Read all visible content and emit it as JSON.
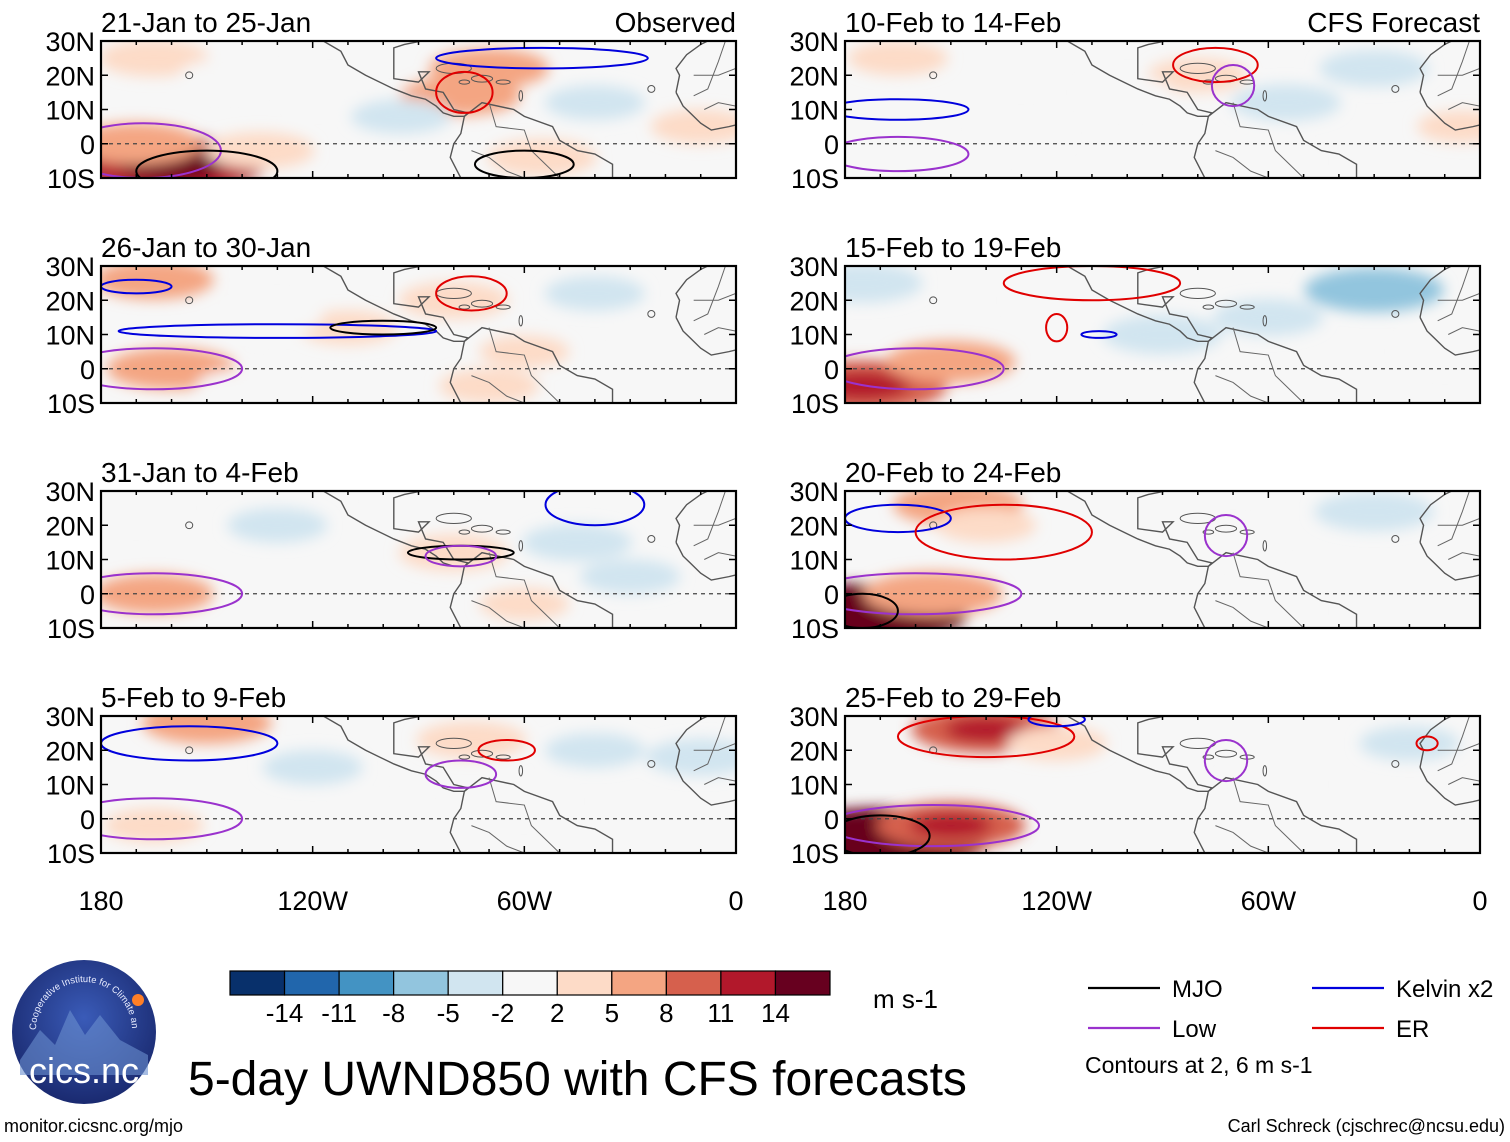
{
  "figure": {
    "title": "5-day UWND850 with CFS forecasts",
    "website": "monitor.cicsnc.org/mjo",
    "credit": "Carl Schreck (cjschrec@ncsu.edu)",
    "logo": {
      "name": "cics.nc",
      "ring_text": "Cooperative Institute for Climate and Satellites"
    }
  },
  "colorbar": {
    "unit": "m s-1",
    "levels": [
      "-14",
      "-11",
      "-8",
      "-5",
      "-2",
      "2",
      "5",
      "8",
      "11",
      "14"
    ],
    "colors": [
      "#08306b",
      "#2166ac",
      "#4393c3",
      "#92c5de",
      "#d1e5f0",
      "#f7f7f7",
      "#fddbc7",
      "#f4a582",
      "#d6604d",
      "#b2182b",
      "#67001f"
    ]
  },
  "legend": {
    "items": [
      {
        "label": "MJO",
        "color": "#000000"
      },
      {
        "label": "Kelvin x2",
        "color": "#0000dd"
      },
      {
        "label": "Low",
        "color": "#9a32cd"
      },
      {
        "label": "ER",
        "color": "#e00000"
      }
    ],
    "note": "Contours at 2, 6 m s-1"
  },
  "chart_data": {
    "type": "heatmap",
    "variable": "850-hPa zonal wind anomaly (5-day mean)",
    "unit": "m s-1",
    "xlim": [
      -180,
      0
    ],
    "ylim": [
      -10,
      30
    ],
    "xticks": [
      -180,
      -120,
      -60,
      0
    ],
    "xtick_labels": [
      "180",
      "120W",
      "60W",
      "0"
    ],
    "yticks": [
      30,
      20,
      10,
      0,
      -10
    ],
    "ytick_labels": [
      "30N",
      "20N",
      "10N",
      "0",
      "10S"
    ],
    "equator_line": "dashed",
    "panels": [
      {
        "column": "left",
        "title": "21-Jan to 25-Jan",
        "tag": "Observed",
        "blobs": [
          {
            "lon": -160,
            "lat": -6,
            "v": 12
          },
          {
            "lon": -170,
            "lat": 0,
            "v": 6
          },
          {
            "lon": -165,
            "lat": 25,
            "v": 4
          },
          {
            "lon": -135,
            "lat": -2,
            "v": 4
          },
          {
            "lon": -70,
            "lat": 22,
            "v": 5
          },
          {
            "lon": -78,
            "lat": 14,
            "v": 5
          },
          {
            "lon": -55,
            "lat": -4,
            "v": 4
          },
          {
            "lon": -95,
            "lat": 8,
            "v": -3
          },
          {
            "lon": -40,
            "lat": 12,
            "v": -3
          },
          {
            "lon": -115,
            "lat": 15,
            "v": -2
          },
          {
            "lon": -10,
            "lat": 5,
            "v": 3
          },
          {
            "lon": -145,
            "lat": 20,
            "v": -2
          }
        ],
        "contours": [
          {
            "type": "Low",
            "lon": -168,
            "lat": -2,
            "rx": 22,
            "ry": 8
          },
          {
            "type": "Kelvin",
            "lon": -55,
            "lat": 25,
            "rx": 30,
            "ry": 3
          },
          {
            "type": "ER",
            "lon": -77,
            "lat": 15,
            "rx": 8,
            "ry": 6
          },
          {
            "type": "MJO",
            "lon": -150,
            "lat": -8,
            "rx": 20,
            "ry": 6
          },
          {
            "type": "MJO",
            "lon": -60,
            "lat": -6,
            "rx": 14,
            "ry": 4
          }
        ]
      },
      {
        "column": "left",
        "title": "26-Jan to 30-Jan",
        "tag": "",
        "blobs": [
          {
            "lon": -165,
            "lat": 26,
            "v": 5
          },
          {
            "lon": -160,
            "lat": 0,
            "v": 6
          },
          {
            "lon": -80,
            "lat": 20,
            "v": 4
          },
          {
            "lon": -60,
            "lat": 5,
            "v": 2
          },
          {
            "lon": -110,
            "lat": 12,
            "v": 3
          },
          {
            "lon": -130,
            "lat": 15,
            "v": -2
          },
          {
            "lon": -40,
            "lat": 22,
            "v": -3
          },
          {
            "lon": -20,
            "lat": 10,
            "v": -2
          },
          {
            "lon": -70,
            "lat": -5,
            "v": 3
          },
          {
            "lon": -140,
            "lat": -5,
            "v": -2
          }
        ],
        "contours": [
          {
            "type": "Kelvin",
            "lon": -130,
            "lat": 11,
            "rx": 45,
            "ry": 2
          },
          {
            "type": "Kelvin",
            "lon": -170,
            "lat": 24,
            "rx": 10,
            "ry": 2
          },
          {
            "type": "Low",
            "lon": -165,
            "lat": 0,
            "rx": 25,
            "ry": 6
          },
          {
            "type": "ER",
            "lon": -75,
            "lat": 22,
            "rx": 10,
            "ry": 5
          },
          {
            "type": "MJO",
            "lon": -100,
            "lat": 12,
            "rx": 15,
            "ry": 2
          }
        ]
      },
      {
        "column": "left",
        "title": "31-Jan to 4-Feb",
        "tag": "",
        "blobs": [
          {
            "lon": -165,
            "lat": 0,
            "v": 5
          },
          {
            "lon": -80,
            "lat": 12,
            "v": 4
          },
          {
            "lon": -130,
            "lat": 20,
            "v": -3
          },
          {
            "lon": -90,
            "lat": 25,
            "v": -2
          },
          {
            "lon": -45,
            "lat": 15,
            "v": -4
          },
          {
            "lon": -30,
            "lat": 5,
            "v": -3
          },
          {
            "lon": -170,
            "lat": 25,
            "v": -2
          },
          {
            "lon": -60,
            "lat": -3,
            "v": 2
          }
        ],
        "contours": [
          {
            "type": "Low",
            "lon": -165,
            "lat": 0,
            "rx": 25,
            "ry": 6
          },
          {
            "type": "MJO",
            "lon": -78,
            "lat": 12,
            "rx": 15,
            "ry": 2
          },
          {
            "type": "Kelvin",
            "lon": -40,
            "lat": 26,
            "rx": 14,
            "ry": 6
          },
          {
            "type": "Low",
            "lon": -78,
            "lat": 11,
            "rx": 10,
            "ry": 3
          }
        ]
      },
      {
        "column": "left",
        "title": "5-Feb to 9-Feb",
        "tag": "",
        "blobs": [
          {
            "lon": -150,
            "lat": 28,
            "v": 6
          },
          {
            "lon": -75,
            "lat": 23,
            "v": 4
          },
          {
            "lon": -165,
            "lat": -2,
            "v": 3
          },
          {
            "lon": -120,
            "lat": 15,
            "v": -3
          },
          {
            "lon": -40,
            "lat": 20,
            "v": -3
          },
          {
            "lon": -10,
            "lat": 18,
            "v": -4
          },
          {
            "lon": -60,
            "lat": 5,
            "v": -2
          },
          {
            "lon": -100,
            "lat": 0,
            "v": -2
          }
        ],
        "contours": [
          {
            "type": "Kelvin",
            "lon": -155,
            "lat": 22,
            "rx": 25,
            "ry": 5
          },
          {
            "type": "Low",
            "lon": -165,
            "lat": 0,
            "rx": 25,
            "ry": 6
          },
          {
            "type": "ER",
            "lon": -65,
            "lat": 20,
            "rx": 8,
            "ry": 3
          },
          {
            "type": "Low",
            "lon": -78,
            "lat": 13,
            "rx": 10,
            "ry": 4
          }
        ]
      },
      {
        "column": "right",
        "title": "10-Feb to 14-Feb",
        "tag": "CFS Forecast",
        "blobs": [
          {
            "lon": -165,
            "lat": 25,
            "v": 3
          },
          {
            "lon": -80,
            "lat": 20,
            "v": 3
          },
          {
            "lon": -100,
            "lat": 15,
            "v": -2
          },
          {
            "lon": -55,
            "lat": 12,
            "v": -4
          },
          {
            "lon": -30,
            "lat": 22,
            "v": -4
          },
          {
            "lon": -130,
            "lat": 2,
            "v": -2
          },
          {
            "lon": -60,
            "lat": -5,
            "v": -2
          },
          {
            "lon": -5,
            "lat": 5,
            "v": 2
          }
        ],
        "contours": [
          {
            "type": "Kelvin",
            "lon": -165,
            "lat": 10,
            "rx": 20,
            "ry": 3
          },
          {
            "type": "Low",
            "lon": -165,
            "lat": -3,
            "rx": 20,
            "ry": 5
          },
          {
            "type": "ER",
            "lon": -75,
            "lat": 23,
            "rx": 12,
            "ry": 5
          },
          {
            "type": "Low",
            "lon": -70,
            "lat": 17,
            "rx": 6,
            "ry": 6
          }
        ]
      },
      {
        "column": "right",
        "title": "15-Feb to 19-Feb",
        "tag": "",
        "blobs": [
          {
            "lon": -175,
            "lat": -5,
            "v": 10
          },
          {
            "lon": -150,
            "lat": 2,
            "v": 6
          },
          {
            "lon": -175,
            "lat": 25,
            "v": -5
          },
          {
            "lon": -30,
            "lat": 23,
            "v": -7
          },
          {
            "lon": -90,
            "lat": 10,
            "v": -5
          },
          {
            "lon": -60,
            "lat": 15,
            "v": -4
          },
          {
            "lon": -120,
            "lat": 20,
            "v": -2
          },
          {
            "lon": -10,
            "lat": 5,
            "v": -2
          }
        ],
        "contours": [
          {
            "type": "Low",
            "lon": -160,
            "lat": 0,
            "rx": 25,
            "ry": 6
          },
          {
            "type": "ER",
            "lon": -110,
            "lat": 25,
            "rx": 25,
            "ry": 5
          },
          {
            "type": "Kelvin",
            "lon": -108,
            "lat": 10,
            "rx": 5,
            "ry": 1
          },
          {
            "type": "ER",
            "lon": -120,
            "lat": 12,
            "rx": 3,
            "ry": 4
          }
        ]
      },
      {
        "column": "right",
        "title": "20-Feb to 24-Feb",
        "tag": "",
        "blobs": [
          {
            "lon": -175,
            "lat": -6,
            "v": 14
          },
          {
            "lon": -155,
            "lat": 0,
            "v": 7
          },
          {
            "lon": -148,
            "lat": 26,
            "v": 6
          },
          {
            "lon": -140,
            "lat": 20,
            "v": 3
          },
          {
            "lon": -30,
            "lat": 24,
            "v": -5
          },
          {
            "lon": -70,
            "lat": 15,
            "v": -2
          },
          {
            "lon": -60,
            "lat": -5,
            "v": -2
          }
        ],
        "contours": [
          {
            "type": "Kelvin",
            "lon": -165,
            "lat": 22,
            "rx": 15,
            "ry": 4
          },
          {
            "type": "ER",
            "lon": -135,
            "lat": 18,
            "rx": 25,
            "ry": 8
          },
          {
            "type": "Low",
            "lon": -160,
            "lat": 0,
            "rx": 30,
            "ry": 6
          },
          {
            "type": "MJO",
            "lon": -175,
            "lat": -5,
            "rx": 10,
            "ry": 5
          },
          {
            "type": "Low",
            "lon": -72,
            "lat": 17,
            "rx": 6,
            "ry": 6
          }
        ]
      },
      {
        "column": "right",
        "title": "25-Feb to 29-Feb",
        "tag": "",
        "blobs": [
          {
            "lon": -170,
            "lat": -6,
            "v": 15
          },
          {
            "lon": -150,
            "lat": -2,
            "v": 8
          },
          {
            "lon": -140,
            "lat": 26,
            "v": 8
          },
          {
            "lon": -120,
            "lat": 22,
            "v": 3
          },
          {
            "lon": -20,
            "lat": 22,
            "v": -3
          },
          {
            "lon": -60,
            "lat": 10,
            "v": -2
          }
        ],
        "contours": [
          {
            "type": "ER",
            "lon": -140,
            "lat": 24,
            "rx": 25,
            "ry": 6
          },
          {
            "type": "Kelvin",
            "lon": -120,
            "lat": 29,
            "rx": 8,
            "ry": 2
          },
          {
            "type": "Low",
            "lon": -155,
            "lat": -2,
            "rx": 30,
            "ry": 6
          },
          {
            "type": "MJO",
            "lon": -170,
            "lat": -5,
            "rx": 14,
            "ry": 6
          },
          {
            "type": "ER",
            "lon": -15,
            "lat": 22,
            "rx": 3,
            "ry": 2
          },
          {
            "type": "Low",
            "lon": -72,
            "lat": 17,
            "rx": 6,
            "ry": 6
          }
        ]
      }
    ]
  }
}
